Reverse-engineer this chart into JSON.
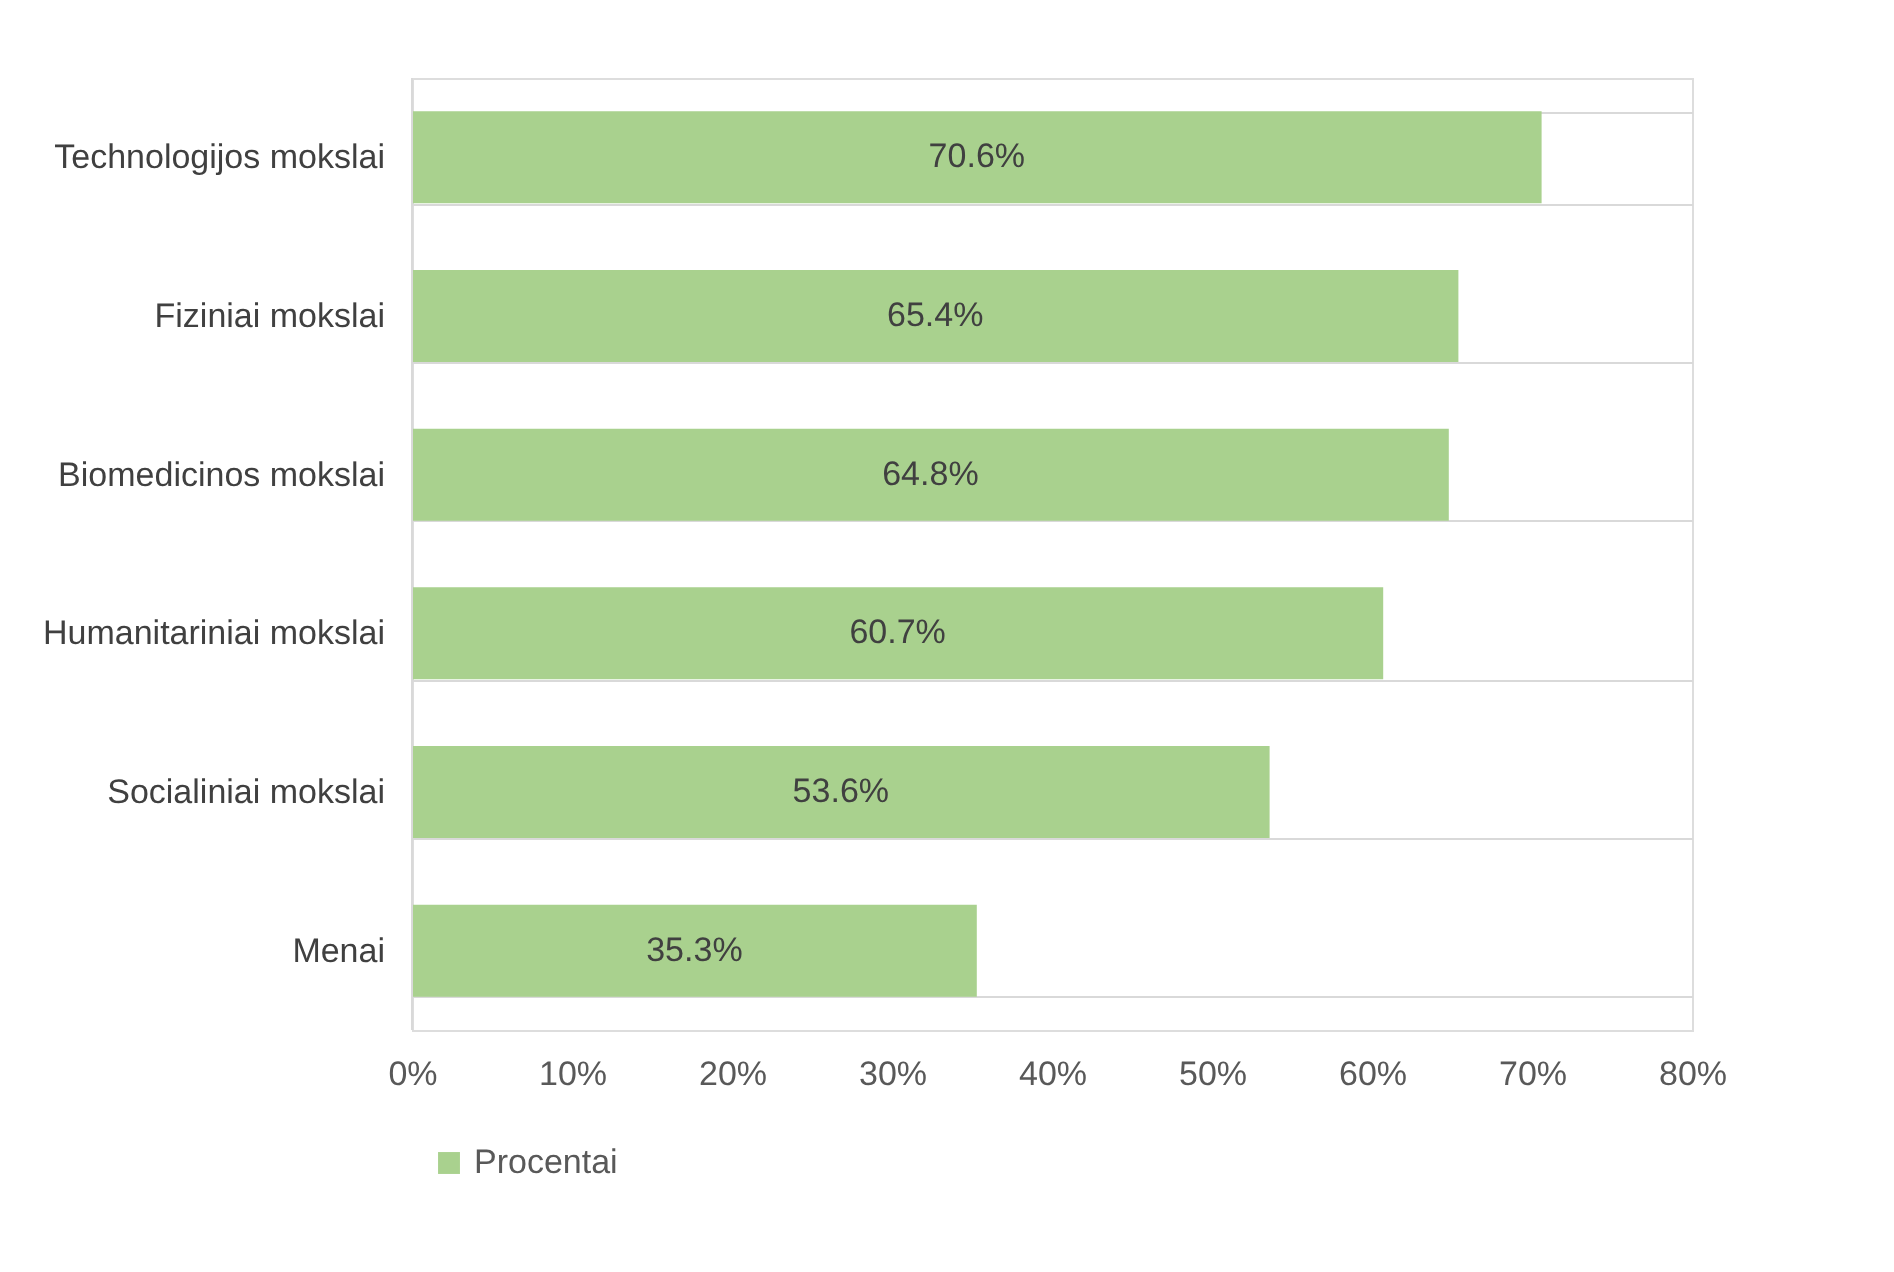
{
  "chart_data": {
    "type": "bar",
    "orientation": "horizontal",
    "categories": [
      "Technologijos mokslai",
      "Fiziniai mokslai",
      "Biomedicinos mokslai",
      "Humanitariniai mokslai",
      "Socialiniai mokslai",
      "Menai"
    ],
    "series": [
      {
        "name": "Procentai",
        "color": "#a9d18e",
        "values": [
          70.6,
          65.4,
          64.8,
          60.7,
          53.6,
          35.3
        ],
        "value_labels": [
          "70.6%",
          "65.4%",
          "64.8%",
          "60.7%",
          "53.6%",
          "35.3%"
        ]
      }
    ],
    "xlim": [
      0,
      80
    ],
    "xticks": [
      {
        "value": 0,
        "label": "0%"
      },
      {
        "value": 10,
        "label": "10%"
      },
      {
        "value": 20,
        "label": "20%"
      },
      {
        "value": 30,
        "label": "30%"
      },
      {
        "value": 40,
        "label": "40%"
      },
      {
        "value": 50,
        "label": "50%"
      },
      {
        "value": 60,
        "label": "60%"
      },
      {
        "value": 70,
        "label": "70%"
      },
      {
        "value": 80,
        "label": "80%"
      }
    ],
    "grid": "y",
    "legend": "bottom"
  }
}
